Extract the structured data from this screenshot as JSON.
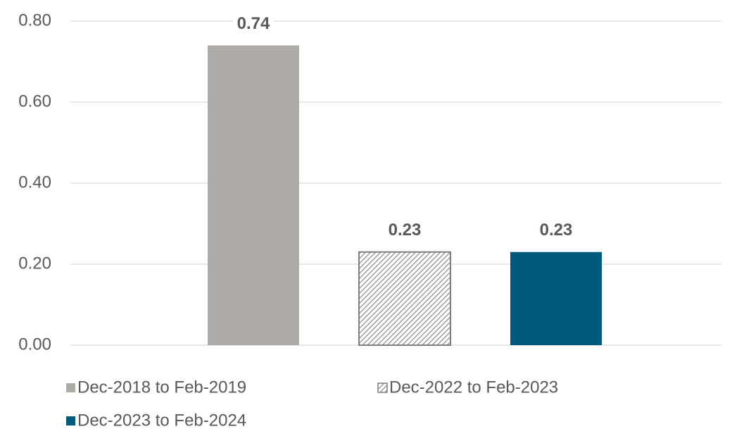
{
  "chart_data": {
    "type": "bar",
    "categories": [
      null
    ],
    "series": [
      {
        "name": "Dec-2018 to Feb-2019",
        "color": "#aeabab",
        "values": [
          0.74
        ]
      },
      {
        "name": "Dec-2022 to Feb-2023",
        "color": "#7f7f7f",
        "pattern": "hatch",
        "values": [
          0.23
        ]
      },
      {
        "name": "Dec-2023 to Feb-2024",
        "color": "#005a7c",
        "values": [
          0.23
        ]
      }
    ],
    "ylim": [
      0,
      0.8
    ],
    "yticks": [
      {
        "value": 0,
        "label": "0.00"
      },
      {
        "value": 0.2,
        "label": "0.20"
      },
      {
        "value": 0.4,
        "label": "0.40"
      },
      {
        "value": 0.6,
        "label": "0.60"
      },
      {
        "value": 0.8,
        "label": "0.80"
      }
    ],
    "grid": true
  }
}
